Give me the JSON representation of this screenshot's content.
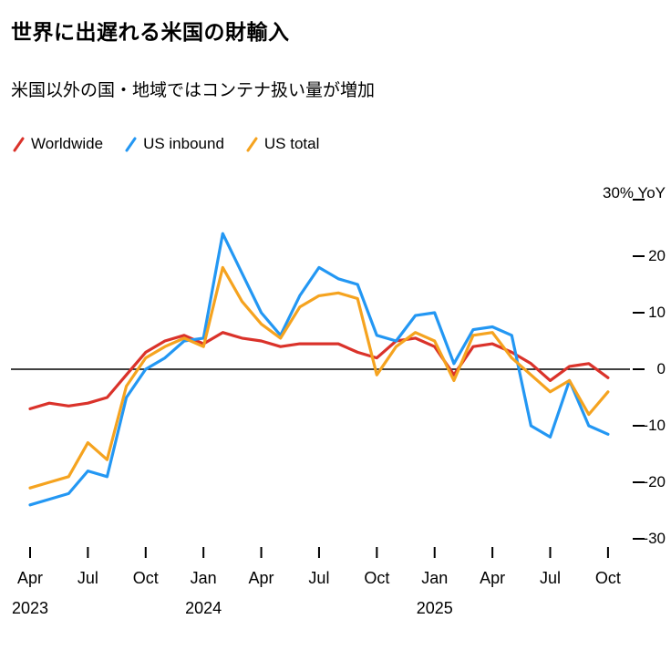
{
  "header": {
    "title": "世界に出遅れる米国の財輸入",
    "subtitle": "米国以外の国・地域ではコンテナ扱い量が増加"
  },
  "legend": [
    {
      "label": "Worldwide",
      "color": "#da322a"
    },
    {
      "label": "US inbound",
      "color": "#2397f3"
    },
    {
      "label": "US total",
      "color": "#f5a31f"
    }
  ],
  "chart_data": {
    "type": "line",
    "title": "世界に出遅れる米国の財輸入",
    "subtitle": "米国以外の国・地域ではコンテナ扱い量が増加",
    "unit_label": "30% YoY",
    "ylabel": "% YoY",
    "ylim": [
      -30,
      30
    ],
    "grid": false,
    "zero_line": true,
    "legend_position": "top-left",
    "x_months": [
      "Apr 2023",
      "May 2023",
      "Jun 2023",
      "Jul 2023",
      "Aug 2023",
      "Sep 2023",
      "Oct 2023",
      "Nov 2023",
      "Dec 2023",
      "Jan 2024",
      "Feb 2024",
      "Mar 2024",
      "Apr 2024",
      "May 2024",
      "Jun 2024",
      "Jul 2024",
      "Aug 2024",
      "Sep 2024",
      "Oct 2024",
      "Nov 2024",
      "Dec 2024",
      "Jan 2025",
      "Feb 2025",
      "Mar 2025",
      "Apr 2025",
      "May 2025",
      "Jun 2025",
      "Jul 2025",
      "Aug 2025",
      "Sep 2025",
      "Oct 2025"
    ],
    "series": [
      {
        "name": "Worldwide",
        "color": "#da322a",
        "values": [
          -7,
          -6,
          -6.5,
          -6,
          -5,
          -1,
          3,
          5,
          6,
          4.5,
          6.5,
          5.5,
          5,
          4,
          4.5,
          4.5,
          4.5,
          3,
          2,
          5,
          5.5,
          4,
          -1,
          4,
          4.5,
          3,
          1,
          -2,
          0.5,
          1,
          -1.5
        ]
      },
      {
        "name": "US inbound",
        "color": "#2397f3",
        "values": [
          -24,
          -23,
          -22,
          -18,
          -19,
          -5,
          0,
          2,
          5,
          5.5,
          24,
          17,
          10,
          6,
          13,
          18,
          16,
          15,
          6,
          5,
          9.5,
          10,
          1,
          7,
          7.5,
          6,
          -10,
          -12,
          -2,
          -10,
          -11.5
        ]
      },
      {
        "name": "US total",
        "color": "#f5a31f",
        "values": [
          -21,
          -20,
          -19,
          -13,
          -16,
          -3,
          2,
          4,
          5.5,
          4,
          18,
          12,
          8,
          5.5,
          11,
          13,
          13.5,
          12.5,
          -1,
          4,
          6.5,
          5,
          -2,
          6,
          6.5,
          2,
          -1,
          -4,
          -2,
          -8,
          -4
        ]
      }
    ],
    "y_ticks": [
      30,
      20,
      10,
      0,
      -10,
      -20,
      -30
    ],
    "y_tick_labels": [
      "",
      "20",
      "10",
      "0",
      "-10",
      "-20",
      "-30"
    ],
    "x_ticks": [
      {
        "index": 0,
        "label": "Apr",
        "year": "2023"
      },
      {
        "index": 3,
        "label": "Jul"
      },
      {
        "index": 6,
        "label": "Oct"
      },
      {
        "index": 9,
        "label": "Jan",
        "year": "2024"
      },
      {
        "index": 12,
        "label": "Apr"
      },
      {
        "index": 15,
        "label": "Jul"
      },
      {
        "index": 18,
        "label": "Oct"
      },
      {
        "index": 21,
        "label": "Jan",
        "year": "2025"
      },
      {
        "index": 24,
        "label": "Apr"
      },
      {
        "index": 27,
        "label": "Jul"
      },
      {
        "index": 30,
        "label": "Oct"
      }
    ]
  }
}
